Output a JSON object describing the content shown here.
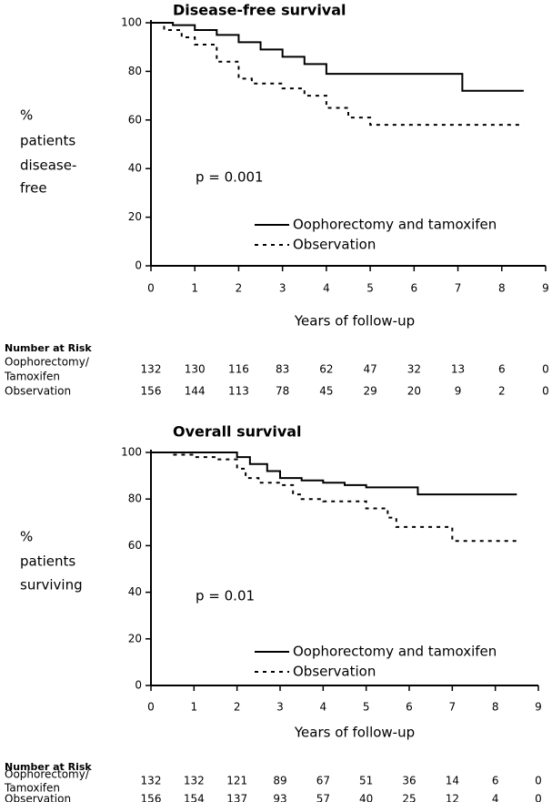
{
  "chart_data": [
    {
      "type": "line",
      "title": "Disease-free survival",
      "ylabel": [
        "%",
        "patients",
        "disease-",
        "free"
      ],
      "xlabel": "Years of follow-up",
      "annotation": "p = 0.001",
      "xlim": [
        0,
        9
      ],
      "ylim": [
        0,
        100
      ],
      "xticks": [
        0,
        1,
        2,
        3,
        4,
        5,
        6,
        7,
        8,
        9
      ],
      "yticks": [
        0,
        20,
        40,
        60,
        80,
        100
      ],
      "series": [
        {
          "name": "Oophorectomy and tamoxifen",
          "color": "#000000",
          "linestyle": "solid",
          "x": [
            0,
            0.5,
            0.5,
            1,
            1,
            1.5,
            1.5,
            2,
            2,
            2.5,
            2.5,
            3,
            3,
            3.5,
            3.5,
            4,
            4,
            7.1,
            7.1,
            8.5
          ],
          "values": [
            100,
            100,
            99,
            99,
            97,
            97,
            95,
            95,
            92,
            92,
            89,
            89,
            86,
            86,
            83,
            83,
            79,
            79,
            72,
            72
          ]
        },
        {
          "name": "Observation",
          "color": "#000000",
          "linestyle": "dashed",
          "x": [
            0,
            0.3,
            0.3,
            0.7,
            0.7,
            1,
            1,
            1.5,
            1.5,
            2,
            2,
            2.3,
            2.3,
            3,
            3,
            3.5,
            3.5,
            4,
            4,
            4.5,
            4.5,
            5,
            5,
            8.5
          ],
          "values": [
            100,
            100,
            97,
            97,
            94,
            94,
            91,
            91,
            84,
            84,
            77,
            77,
            75,
            75,
            73,
            73,
            70,
            70,
            65,
            65,
            61,
            61,
            58,
            58
          ]
        }
      ],
      "risk_table": {
        "title": "Number at Risk",
        "rows": [
          {
            "label": [
              "Oophorectomy/",
              "Tamoxifen"
            ],
            "values": [
              132,
              130,
              116,
              83,
              62,
              47,
              32,
              13,
              6,
              0
            ]
          },
          {
            "label": [
              "Observation"
            ],
            "values": [
              156,
              144,
              113,
              78,
              45,
              29,
              20,
              9,
              2,
              0
            ]
          }
        ]
      }
    },
    {
      "type": "line",
      "title": "Overall survival",
      "ylabel": [
        "%",
        "patients",
        "surviving"
      ],
      "xlabel": "Years of follow-up",
      "annotation": "p = 0.01",
      "xlim": [
        0,
        9
      ],
      "ylim": [
        0,
        100
      ],
      "xticks": [
        0,
        1,
        2,
        3,
        4,
        5,
        6,
        7,
        8,
        9
      ],
      "yticks": [
        0,
        20,
        40,
        60,
        80,
        100
      ],
      "series": [
        {
          "name": "Oophorectomy and tamoxifen",
          "color": "#000000",
          "linestyle": "solid",
          "x": [
            0,
            2,
            2,
            2.3,
            2.3,
            2.7,
            2.7,
            3,
            3,
            3.5,
            3.5,
            4,
            4,
            4.5,
            4.5,
            5,
            5,
            6.2,
            6.2,
            8.5
          ],
          "values": [
            100,
            100,
            98,
            98,
            95,
            95,
            92,
            92,
            89,
            89,
            88,
            88,
            87,
            87,
            86,
            86,
            85,
            85,
            82,
            82
          ]
        },
        {
          "name": "Observation",
          "color": "#000000",
          "linestyle": "dashed",
          "x": [
            0,
            0.5,
            0.5,
            1,
            1,
            1.5,
            1.5,
            2,
            2,
            2.2,
            2.2,
            2.5,
            2.5,
            3,
            3,
            3.3,
            3.3,
            3.5,
            3.5,
            4,
            4,
            5,
            5,
            5.5,
            5.5,
            5.7,
            5.7,
            7,
            7,
            8.5
          ],
          "values": [
            100,
            100,
            99,
            99,
            98,
            98,
            97,
            97,
            93,
            93,
            89,
            89,
            87,
            87,
            86,
            86,
            82,
            82,
            80,
            80,
            79,
            79,
            76,
            76,
            72,
            72,
            68,
            68,
            62,
            62
          ]
        }
      ],
      "risk_table": {
        "title": "Number at Risk",
        "rows": [
          {
            "label": [
              "Oophorectomy/",
              "Tamoxifen"
            ],
            "values": [
              132,
              132,
              121,
              89,
              67,
              51,
              36,
              14,
              6,
              0
            ]
          },
          {
            "label": [
              "Observation"
            ],
            "values": [
              156,
              154,
              137,
              93,
              57,
              40,
              25,
              12,
              4,
              0
            ]
          }
        ]
      }
    }
  ]
}
